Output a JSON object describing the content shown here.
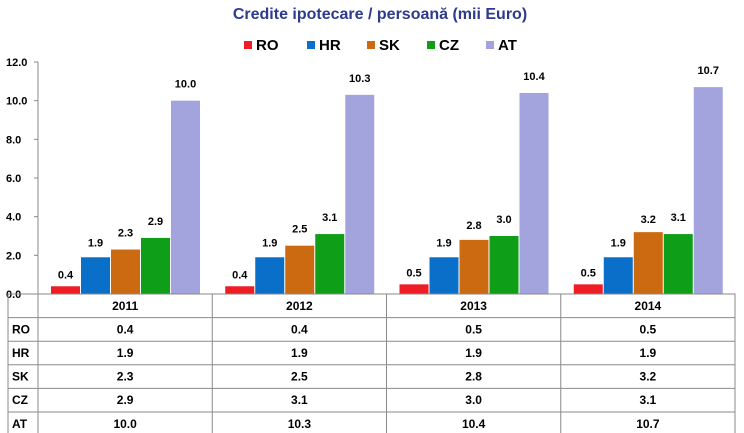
{
  "chart_data": {
    "type": "bar",
    "title": "Credite ipotecare / persoană (mii Euro)",
    "categories": [
      "2011",
      "2012",
      "2013",
      "2014"
    ],
    "series": [
      {
        "name": "RO",
        "color": "#ee1c25",
        "values": [
          0.4,
          0.4,
          0.5,
          0.5
        ],
        "labels": [
          "0.4",
          "0.4",
          "0.5",
          "0.5"
        ]
      },
      {
        "name": "HR",
        "color": "#0a6fc9",
        "values": [
          1.9,
          1.9,
          1.9,
          1.9
        ],
        "labels": [
          "1.9",
          "1.9",
          "1.9",
          "1.9"
        ]
      },
      {
        "name": "SK",
        "color": "#cc6a12",
        "values": [
          2.3,
          2.5,
          2.8,
          3.2
        ],
        "labels": [
          "2.3",
          "2.5",
          "2.8",
          "3.2"
        ]
      },
      {
        "name": "CZ",
        "color": "#0f9e17",
        "values": [
          2.9,
          3.1,
          3.0,
          3.1
        ],
        "labels": [
          "2.9",
          "3.1",
          "3.0",
          "3.1"
        ]
      },
      {
        "name": "AT",
        "color": "#a3a3de",
        "values": [
          10.0,
          10.3,
          10.4,
          10.7
        ],
        "labels": [
          "10.0",
          "10.3",
          "10.4",
          "10.7"
        ]
      }
    ],
    "yticks": [
      "0.0",
      "2.0",
      "4.0",
      "6.0",
      "8.0",
      "10.0",
      "12.0"
    ],
    "ylim": [
      0,
      12
    ],
    "legend_position": "top",
    "grid": false,
    "data_table": true
  }
}
